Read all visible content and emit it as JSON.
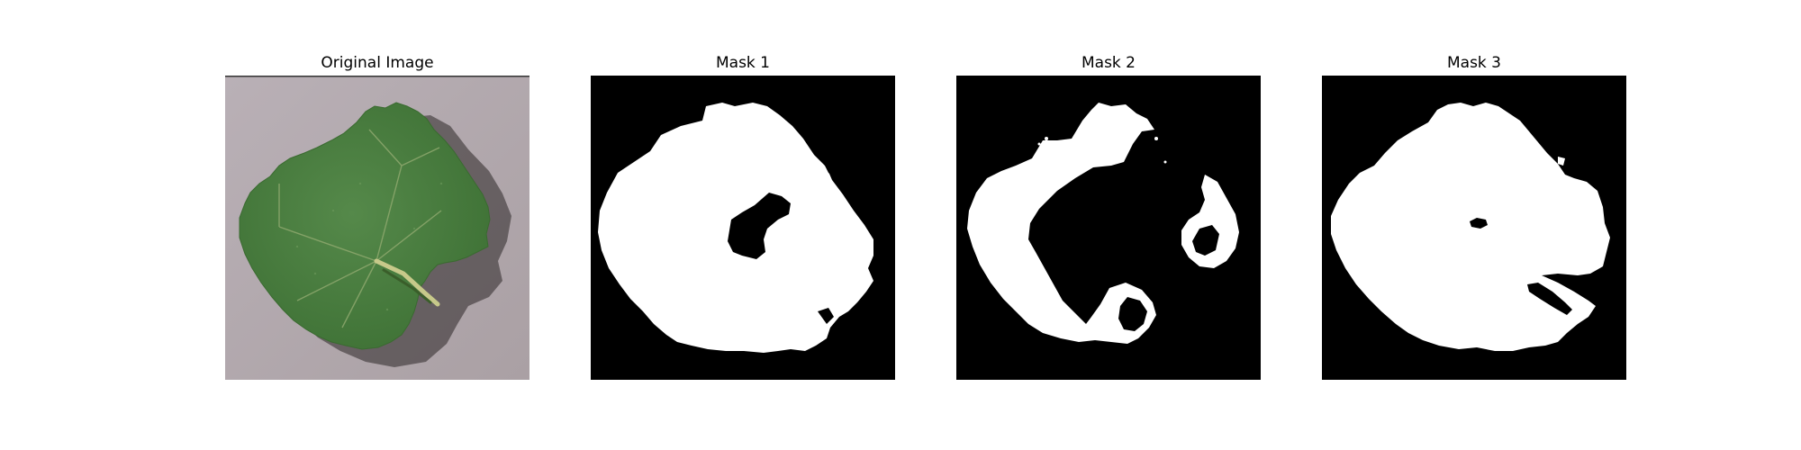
{
  "panels": [
    {
      "title": "Original Image"
    },
    {
      "title": "Mask 1"
    },
    {
      "title": "Mask 2"
    },
    {
      "title": "Mask 3"
    }
  ],
  "colors": {
    "background": "#ffffff",
    "photo_background": "#b2a8ad",
    "leaf_green": "#4a7f3e",
    "leaf_vein": "#9bb07a",
    "mask_background": "#000000",
    "mask_foreground": "#ffffff"
  }
}
